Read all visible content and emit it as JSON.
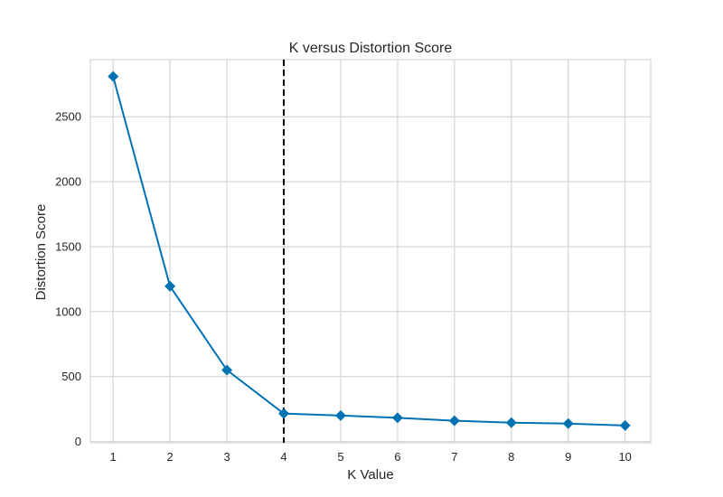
{
  "chart_data": {
    "type": "line",
    "title": "K versus Distortion Score",
    "xlabel": "K Value",
    "ylabel": "Distortion Score",
    "x": [
      1,
      2,
      3,
      4,
      5,
      6,
      7,
      8,
      9,
      10
    ],
    "series": [
      {
        "values": [
          2810,
          1195,
          550,
          215,
          200,
          182,
          160,
          145,
          138,
          123
        ],
        "color": "#0173b2",
        "marker": "diamond"
      }
    ],
    "xlim": [
      0.6,
      10.45
    ],
    "ylim": [
      -10,
      2940
    ],
    "xticks": [
      "1",
      "2",
      "3",
      "4",
      "5",
      "6",
      "7",
      "8",
      "9",
      "10"
    ],
    "yticks": [
      "0",
      "500",
      "1000",
      "1500",
      "2000",
      "2500"
    ],
    "ytick_values": [
      0,
      500,
      1000,
      1500,
      2000,
      2500
    ],
    "elbow_k": 4,
    "elbow_line": {
      "style": "dashed",
      "color": "#000000"
    },
    "grid": true,
    "grid_color": "#d5d5d5",
    "frame_color": "#d5d5d5"
  }
}
